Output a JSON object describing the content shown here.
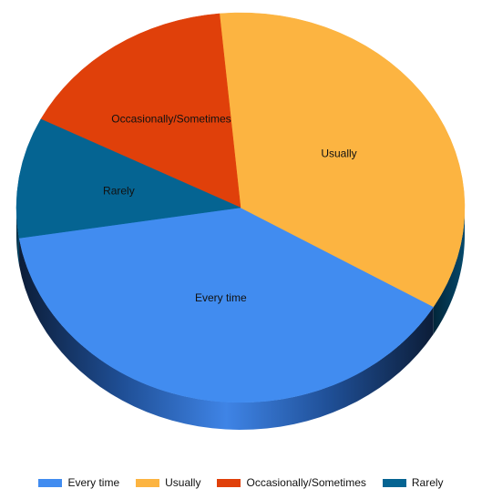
{
  "chart_data": {
    "type": "pie",
    "title": "",
    "series": [
      {
        "name": "Every time",
        "value": 39,
        "color": "#418CF0"
      },
      {
        "name": "Usually",
        "value": 35,
        "color": "#FCB441"
      },
      {
        "name": "Occasionally/Sometimes",
        "value": 16,
        "color": "#E0400A"
      },
      {
        "name": "Rarely",
        "value": 10,
        "color": "#056492"
      }
    ],
    "style": "3d-tilted",
    "legend_position": "bottom"
  }
}
